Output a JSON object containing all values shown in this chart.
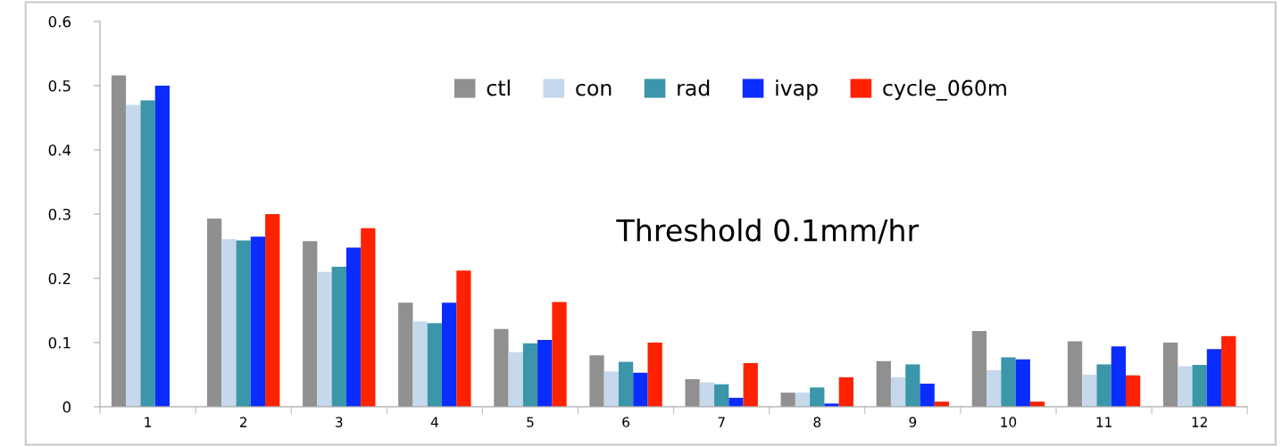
{
  "chart_data": {
    "type": "bar",
    "categories": [
      "1",
      "2",
      "3",
      "4",
      "5",
      "6",
      "7",
      "8",
      "9",
      "10",
      "11",
      "12"
    ],
    "series": [
      {
        "name": "ctl",
        "color": "#909090",
        "values": [
          0.516,
          0.293,
          0.258,
          0.162,
          0.121,
          0.08,
          0.043,
          0.022,
          0.071,
          0.118,
          0.102,
          0.1
        ]
      },
      {
        "name": "con",
        "color": "#c5d8ec",
        "values": [
          0.47,
          0.261,
          0.21,
          0.133,
          0.085,
          0.055,
          0.038,
          0.022,
          0.046,
          0.057,
          0.05,
          0.063
        ]
      },
      {
        "name": "rad",
        "color": "#3a96a8",
        "values": [
          0.477,
          0.259,
          0.218,
          0.13,
          0.099,
          0.07,
          0.035,
          0.03,
          0.066,
          0.077,
          0.066,
          0.065
        ]
      },
      {
        "name": "ivap",
        "color": "#0a2cff",
        "values": [
          0.5,
          0.265,
          0.248,
          0.162,
          0.104,
          0.053,
          0.014,
          0.005,
          0.036,
          0.074,
          0.094,
          0.09
        ]
      },
      {
        "name": "cycle_060m",
        "color": "#ff2200",
        "values": [
          null,
          0.3,
          0.278,
          0.212,
          0.163,
          0.1,
          0.068,
          0.046,
          0.008,
          0.008,
          0.049,
          0.11
        ]
      }
    ],
    "ylim": [
      0,
      0.6
    ],
    "yticks": [
      {
        "value": 0,
        "label": "0"
      },
      0.1,
      0.2,
      0.3,
      0.4,
      0.5,
      0.6
    ],
    "annotations": [
      "Threshold 0.1mm/hr"
    ],
    "legend": "top",
    "grid": false
  }
}
